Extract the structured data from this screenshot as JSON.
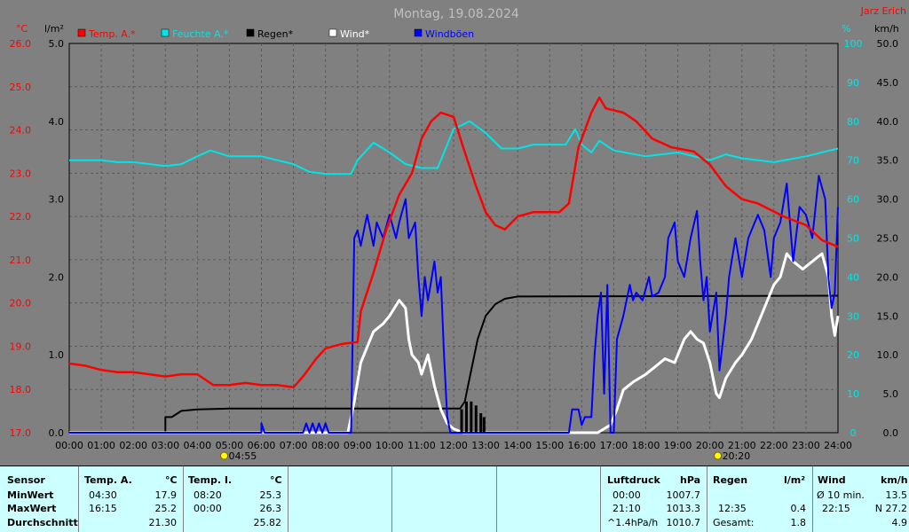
{
  "header": {
    "title": "Montag, 19.08.2024",
    "author": "Jarz Erich",
    "unit_left_temp": "°C",
    "unit_left_rain": "l/m²",
    "unit_right_pct": "%",
    "unit_right_wind": "km/h"
  },
  "colors": {
    "background": "#808080",
    "plot_bg": "#808080",
    "temp": "#ff0000",
    "humidity": "#00e5e5",
    "rain": "#000000",
    "wind": "#ffffff",
    "gust": "#0000ff",
    "stats_bg": "#ccffff"
  },
  "chart_data": {
    "type": "line",
    "title": "Montag, 19.08.2024",
    "x_ticks": [
      "00:00",
      "01:00",
      "02:00",
      "03:00",
      "04:00",
      "05:00",
      "06:00",
      "07:00",
      "08:00",
      "09:00",
      "10:00",
      "11:00",
      "12:00",
      "13:00",
      "14:00",
      "15:00",
      "16:00",
      "17:00",
      "18:00",
      "19:00",
      "20:00",
      "21:00",
      "22:00",
      "23:00",
      "24:00"
    ],
    "xlim_hours": [
      0,
      24
    ],
    "axes": {
      "temp": {
        "label": "°C",
        "ticks": [
          "17.0",
          "18.0",
          "19.0",
          "20.0",
          "21.0",
          "22.0",
          "23.0",
          "24.0",
          "25.0",
          "26.0"
        ],
        "range": [
          17,
          26
        ]
      },
      "rain": {
        "label": "l/m²",
        "ticks": [
          "0.0",
          "1.0",
          "2.0",
          "3.0",
          "4.0",
          "5.0"
        ],
        "range": [
          0,
          5
        ]
      },
      "humidity": {
        "label": "%",
        "ticks": [
          "0",
          "10",
          "20",
          "30",
          "40",
          "50",
          "60",
          "70",
          "80",
          "90",
          "100"
        ],
        "range": [
          0,
          100
        ]
      },
      "wind": {
        "label": "km/h",
        "ticks": [
          "0.0",
          "5.0",
          "10.0",
          "15.0",
          "20.0",
          "25.0",
          "30.0",
          "35.0",
          "40.0",
          "45.0",
          "50.0"
        ],
        "range": [
          0,
          50
        ]
      }
    },
    "legend": [
      {
        "name": "Temp. A.*",
        "color": "#ff0000"
      },
      {
        "name": "Feuchte A.*",
        "color": "#00e5e5"
      },
      {
        "name": "Regen*",
        "color": "#000000"
      },
      {
        "name": "Wind*",
        "color": "#ffffff"
      },
      {
        "name": "Windböen",
        "color": "#0000ff"
      }
    ],
    "grid": true,
    "sun_markers": [
      {
        "label": "04:55",
        "hour": 4.92
      },
      {
        "label": "20:20",
        "hour": 20.33
      }
    ],
    "series": [
      {
        "name": "Temp. A.*",
        "axis": "temp",
        "points": [
          [
            0,
            18.6
          ],
          [
            0.5,
            18.55
          ],
          [
            1,
            18.45
          ],
          [
            1.5,
            18.4
          ],
          [
            2,
            18.4
          ],
          [
            2.5,
            18.35
          ],
          [
            3,
            18.3
          ],
          [
            3.5,
            18.35
          ],
          [
            4,
            18.35
          ],
          [
            4.3,
            18.2
          ],
          [
            4.5,
            18.1
          ],
          [
            5,
            18.1
          ],
          [
            5.5,
            18.15
          ],
          [
            6,
            18.1
          ],
          [
            6.5,
            18.1
          ],
          [
            7,
            18.05
          ],
          [
            7.3,
            18.3
          ],
          [
            7.7,
            18.7
          ],
          [
            8,
            18.95
          ],
          [
            8.5,
            19.05
          ],
          [
            9,
            19.1
          ],
          [
            9.1,
            19.8
          ],
          [
            9.5,
            20.7
          ],
          [
            9.9,
            21.7
          ],
          [
            10.3,
            22.5
          ],
          [
            10.7,
            23.0
          ],
          [
            11.0,
            23.8
          ],
          [
            11.3,
            24.2
          ],
          [
            11.6,
            24.4
          ],
          [
            12,
            24.3
          ],
          [
            12.3,
            23.6
          ],
          [
            12.7,
            22.7
          ],
          [
            13,
            22.1
          ],
          [
            13.3,
            21.8
          ],
          [
            13.6,
            21.7
          ],
          [
            14,
            22.0
          ],
          [
            14.5,
            22.1
          ],
          [
            15.3,
            22.1
          ],
          [
            15.6,
            22.3
          ],
          [
            15.9,
            23.6
          ],
          [
            16.3,
            24.4
          ],
          [
            16.55,
            24.75
          ],
          [
            16.75,
            24.5
          ],
          [
            17.3,
            24.4
          ],
          [
            17.7,
            24.2
          ],
          [
            18.2,
            23.8
          ],
          [
            18.8,
            23.6
          ],
          [
            19.5,
            23.5
          ],
          [
            20.0,
            23.2
          ],
          [
            20.5,
            22.7
          ],
          [
            21.0,
            22.4
          ],
          [
            21.5,
            22.3
          ],
          [
            22.3,
            22.0
          ],
          [
            23.0,
            21.8
          ],
          [
            23.5,
            21.45
          ],
          [
            24,
            21.3
          ]
        ]
      },
      {
        "name": "Feuchte A.*",
        "axis": "humidity",
        "points": [
          [
            0,
            70
          ],
          [
            1,
            70
          ],
          [
            1.5,
            69.5
          ],
          [
            2,
            69.5
          ],
          [
            3,
            68.5
          ],
          [
            3.5,
            69
          ],
          [
            4,
            71
          ],
          [
            4.4,
            72.5
          ],
          [
            5,
            71
          ],
          [
            6,
            71
          ],
          [
            6.5,
            70
          ],
          [
            7,
            69
          ],
          [
            7.5,
            67
          ],
          [
            8,
            66.5
          ],
          [
            8.8,
            66.5
          ],
          [
            9,
            70
          ],
          [
            9.5,
            74.5
          ],
          [
            10,
            72
          ],
          [
            10.5,
            69
          ],
          [
            11,
            68
          ],
          [
            11.5,
            68
          ],
          [
            12,
            78
          ],
          [
            12.5,
            80
          ],
          [
            13,
            77
          ],
          [
            13.5,
            73
          ],
          [
            14,
            73
          ],
          [
            14.5,
            74
          ],
          [
            15.5,
            74
          ],
          [
            15.8,
            78
          ],
          [
            16,
            74
          ],
          [
            16.3,
            72
          ],
          [
            16.55,
            75
          ],
          [
            17,
            72.5
          ],
          [
            18,
            71
          ],
          [
            19,
            72
          ],
          [
            20,
            70
          ],
          [
            20.5,
            71.5
          ],
          [
            21,
            70.5
          ],
          [
            22,
            69.5
          ],
          [
            23,
            71
          ],
          [
            24,
            73
          ]
        ]
      },
      {
        "name": "Regen*",
        "axis": "rain",
        "points": [
          [
            0,
            0
          ],
          [
            3.0,
            0
          ],
          [
            3.0,
            0.2
          ],
          [
            3.2,
            0.2
          ],
          [
            3.5,
            0.28
          ],
          [
            4,
            0.3
          ],
          [
            5,
            0.31
          ],
          [
            12.2,
            0.31
          ],
          [
            12.35,
            0.4
          ],
          [
            12.5,
            0.7
          ],
          [
            12.75,
            1.2
          ],
          [
            13.0,
            1.5
          ],
          [
            13.3,
            1.65
          ],
          [
            13.6,
            1.72
          ],
          [
            14,
            1.75
          ],
          [
            24,
            1.76
          ]
        ]
      },
      {
        "name": "Wind*",
        "axis": "wind",
        "points": [
          [
            0,
            0
          ],
          [
            8.7,
            0
          ],
          [
            8.9,
            4
          ],
          [
            9.1,
            9
          ],
          [
            9.3,
            11
          ],
          [
            9.5,
            13
          ],
          [
            9.8,
            14
          ],
          [
            10,
            15
          ],
          [
            10.3,
            17
          ],
          [
            10.5,
            16
          ],
          [
            10.6,
            12
          ],
          [
            10.7,
            10
          ],
          [
            10.9,
            9
          ],
          [
            11,
            7.5
          ],
          [
            11.2,
            10
          ],
          [
            11.4,
            6
          ],
          [
            11.6,
            3
          ],
          [
            11.8,
            1.2
          ],
          [
            12,
            0.5
          ],
          [
            12.3,
            0
          ],
          [
            16.5,
            0
          ],
          [
            16.9,
            1
          ],
          [
            17.1,
            3
          ],
          [
            17.3,
            5.5
          ],
          [
            17.6,
            6.5
          ],
          [
            17.8,
            7
          ],
          [
            18.0,
            7.5
          ],
          [
            18.3,
            8.5
          ],
          [
            18.6,
            9.5
          ],
          [
            18.9,
            9
          ],
          [
            19.2,
            12
          ],
          [
            19.4,
            13
          ],
          [
            19.6,
            12
          ],
          [
            19.8,
            11.5
          ],
          [
            20.0,
            9
          ],
          [
            20.2,
            5
          ],
          [
            20.3,
            4.5
          ],
          [
            20.5,
            7
          ],
          [
            20.8,
            9
          ],
          [
            21.0,
            10
          ],
          [
            21.3,
            12
          ],
          [
            21.6,
            15
          ],
          [
            21.8,
            17
          ],
          [
            22.0,
            19
          ],
          [
            22.2,
            20
          ],
          [
            22.4,
            23
          ],
          [
            22.6,
            22
          ],
          [
            22.9,
            21
          ],
          [
            23.2,
            22
          ],
          [
            23.5,
            23
          ],
          [
            23.7,
            20
          ],
          [
            23.8,
            15
          ],
          [
            23.9,
            12.5
          ],
          [
            24,
            15
          ]
        ]
      },
      {
        "name": "Windböen",
        "axis": "wind",
        "points": [
          [
            0,
            0
          ],
          [
            6.0,
            0
          ],
          [
            6.0,
            1.2
          ],
          [
            6.1,
            0
          ],
          [
            7.3,
            0
          ],
          [
            7.4,
            1.2
          ],
          [
            7.5,
            0
          ],
          [
            7.6,
            1.2
          ],
          [
            7.7,
            0
          ],
          [
            7.8,
            1.2
          ],
          [
            7.9,
            0
          ],
          [
            8.0,
            1.2
          ],
          [
            8.1,
            0
          ],
          [
            8.8,
            0
          ],
          [
            8.9,
            25
          ],
          [
            9.0,
            26
          ],
          [
            9.1,
            24
          ],
          [
            9.3,
            28
          ],
          [
            9.5,
            24
          ],
          [
            9.6,
            27
          ],
          [
            9.8,
            25
          ],
          [
            10.0,
            28
          ],
          [
            10.2,
            25
          ],
          [
            10.3,
            27
          ],
          [
            10.5,
            30
          ],
          [
            10.6,
            25
          ],
          [
            10.8,
            27
          ],
          [
            10.9,
            20
          ],
          [
            11.0,
            15
          ],
          [
            11.1,
            20
          ],
          [
            11.2,
            17
          ],
          [
            11.4,
            22
          ],
          [
            11.5,
            18
          ],
          [
            11.6,
            20
          ],
          [
            11.7,
            10
          ],
          [
            11.8,
            2
          ],
          [
            11.9,
            0
          ],
          [
            15.6,
            0
          ],
          [
            15.7,
            3
          ],
          [
            15.9,
            3
          ],
          [
            16.0,
            1
          ],
          [
            16.1,
            2
          ],
          [
            16.3,
            2
          ],
          [
            16.4,
            10
          ],
          [
            16.5,
            15
          ],
          [
            16.6,
            18
          ],
          [
            16.7,
            5
          ],
          [
            16.8,
            19
          ],
          [
            16.9,
            0
          ],
          [
            17.0,
            0
          ],
          [
            17.1,
            12
          ],
          [
            17.3,
            15
          ],
          [
            17.5,
            19
          ],
          [
            17.6,
            17
          ],
          [
            17.7,
            18
          ],
          [
            17.9,
            17
          ],
          [
            18.1,
            20
          ],
          [
            18.2,
            17.5
          ],
          [
            18.4,
            18
          ],
          [
            18.6,
            20
          ],
          [
            18.7,
            25
          ],
          [
            18.9,
            27
          ],
          [
            19.0,
            22
          ],
          [
            19.2,
            20
          ],
          [
            19.4,
            25
          ],
          [
            19.6,
            28.5
          ],
          [
            19.7,
            22
          ],
          [
            19.8,
            17
          ],
          [
            19.9,
            20
          ],
          [
            20.0,
            13
          ],
          [
            20.2,
            18
          ],
          [
            20.3,
            8
          ],
          [
            20.5,
            15
          ],
          [
            20.6,
            20
          ],
          [
            20.8,
            25
          ],
          [
            21.0,
            20
          ],
          [
            21.2,
            25
          ],
          [
            21.5,
            28
          ],
          [
            21.7,
            26
          ],
          [
            21.9,
            20
          ],
          [
            22.0,
            25
          ],
          [
            22.2,
            27
          ],
          [
            22.4,
            32
          ],
          [
            22.6,
            22
          ],
          [
            22.8,
            29
          ],
          [
            23.0,
            28
          ],
          [
            23.2,
            25
          ],
          [
            23.4,
            33
          ],
          [
            23.6,
            30
          ],
          [
            23.7,
            20
          ],
          [
            23.8,
            16
          ],
          [
            23.9,
            18
          ],
          [
            24,
            29
          ]
        ]
      }
    ]
  },
  "stats": {
    "sensor_label": "Sensor",
    "row_labels": [
      "MinWert",
      "MaxWert",
      "Durchschnitt"
    ],
    "temp_a": {
      "header": "Temp. A.",
      "unit": "°C",
      "times": [
        "04:30",
        "16:15",
        ""
      ],
      "values": [
        "17.9",
        "25.2",
        "21.30"
      ]
    },
    "temp_i": {
      "header": "Temp. I.",
      "unit": "°C",
      "times": [
        "08:20",
        "00:00",
        ""
      ],
      "values": [
        "25.3",
        "26.3",
        "25.82"
      ]
    },
    "pressure": {
      "header": "Luftdruck",
      "unit": "hPa",
      "times": [
        "00:00",
        "21:10",
        "^1.4hPa/h"
      ],
      "values": [
        "1007.7",
        "1013.3",
        "1010.7"
      ]
    },
    "rain": {
      "header": "Regen",
      "unit": "l/m²",
      "times": [
        "",
        "12:35",
        "Gesamt:"
      ],
      "values": [
        "",
        "0.4",
        "1.8"
      ]
    },
    "wind": {
      "header": "Wind",
      "unit": "km/h",
      "times": [
        "Ø 10 min.",
        "22:15",
        ""
      ],
      "values": [
        "13.5",
        "N 27.2",
        "4.9"
      ]
    }
  }
}
